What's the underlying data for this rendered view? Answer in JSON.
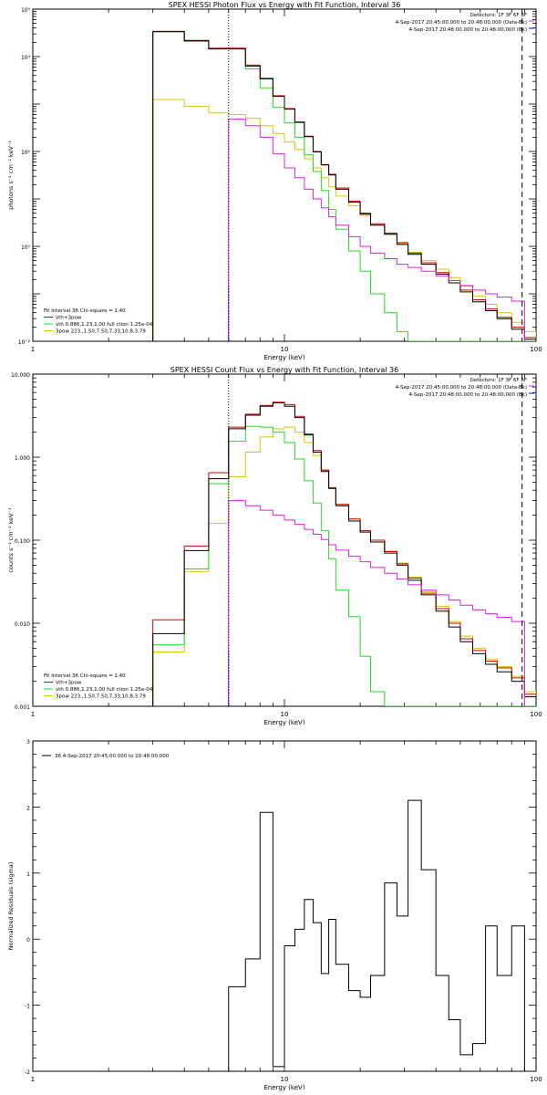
{
  "colors": {
    "total": "#000000",
    "vth_3pow": "#d40000",
    "vth": "#22dd22",
    "pow": "#d8c800",
    "spectrum": "#dd22dd",
    "background": "#0000ff"
  },
  "chart_data": [
    {
      "type": "line",
      "title": "SPEX HESSI Photon Flux vs Energy with Fit Function, Interval 36",
      "xlabel": "Energy (keV)",
      "ylabel": "photons s⁻¹ cm⁻² keV⁻¹",
      "xscale": "log",
      "yscale": "log",
      "xlim": [
        1,
        100
      ],
      "ylim": [
        0.01,
        100000
      ],
      "xticks": [
        "1",
        "10",
        "100"
      ],
      "yticks": [
        "10⁻²",
        "10⁰",
        "10²",
        "10⁴",
        "10⁵"
      ],
      "yticks_lines": [
        {
          "v": 0.01,
          "label": "10⁻²"
        },
        {
          "v": 1,
          "label": "10⁰"
        },
        {
          "v": 100,
          "label": "10²"
        },
        {
          "v": 10000,
          "label": "10⁴"
        },
        {
          "v": 100000,
          "label": "10⁵"
        }
      ],
      "header_lines": [
        "Detectors: 1F 3F 6F 8F",
        "4-Sep-2017 20:45:00.000 to 20:48:00.000 (Data-Bk)",
        "4-Sep-2017 20:48:00.000 to 20:48:00.000 (Bk)"
      ],
      "legend_lines": [
        "Fit Interval 36   Chi-square = 1.40",
        "vth+3pow",
        "vth 0.886,1.23,1.00  full ction 1.25e-04",
        "3pow 223.,1.50,7.50,7.33,10.8,3.79"
      ],
      "vlines": [
        {
          "x": 6.0,
          "style": "dotted"
        },
        {
          "x": 88.0,
          "style": "dashed"
        }
      ],
      "bin_edges": [
        3,
        4,
        5,
        6,
        7,
        8,
        9,
        10,
        11,
        12,
        13,
        14,
        15,
        16,
        18,
        20,
        22,
        25,
        28,
        31,
        35,
        40,
        45,
        50,
        56,
        63,
        70,
        80,
        90,
        100
      ],
      "series": [
        {
          "name": "vth+3pow",
          "color_key": "vth_3pow",
          "values": [
            34000,
            22000,
            15000,
            15000,
            6600,
            3500,
            1500,
            800,
            420,
            210,
            100,
            53,
            33,
            17,
            9,
            5,
            3,
            1.9,
            1.2,
            0.72,
            0.45,
            0.28,
            0.19,
            0.12,
            0.075,
            0.048,
            0.032,
            0.02,
            0.012
          ]
        },
        {
          "name": "",
          "color_key": "total",
          "values": [
            33500,
            21500,
            14500,
            14500,
            6300,
            3400,
            1450,
            780,
            410,
            205,
            98,
            52,
            32,
            16,
            8.5,
            4.8,
            2.8,
            1.8,
            1.1,
            0.68,
            0.42,
            0.26,
            0.17,
            0.11,
            0.068,
            0.044,
            0.03,
            0.018,
            0.011
          ]
        },
        {
          "name": "vth 0.886,1.23,1.00  full ction 1.25e-04",
          "color_key": "vth",
          "values": [
            34000,
            21000,
            15000,
            15000,
            5500,
            2200,
            850,
            400,
            200,
            85,
            38,
            15,
            6,
            2.3,
            0.8,
            0.3,
            0.1,
            0.04,
            0.016,
            0.01,
            0.01,
            0.01,
            0.01,
            0.01,
            0.01,
            0.01,
            0.01,
            0.01,
            0.01
          ]
        },
        {
          "name": "3pow 223.,1.50,7.50,7.33,10.8,3.79",
          "color_key": "pow",
          "values": [
            1250,
            900,
            650,
            600,
            500,
            350,
            240,
            160,
            110,
            70,
            45,
            28,
            18,
            11.5,
            7.2,
            4.5,
            2.8,
            1.8,
            1.15,
            0.75,
            0.5,
            0.33,
            0.22,
            0.145,
            0.09,
            0.06,
            0.04,
            0.025,
            0.016
          ]
        }
      ],
      "spectrum": {
        "name": "4-Sep-2017 20:45:00.000 to 20:48:00.000 (Data-Bk)",
        "color_key": "spectrum",
        "edges": [
          6,
          7,
          8,
          9,
          10,
          11,
          12,
          13,
          14,
          15,
          16,
          18,
          20,
          22,
          25,
          28,
          31,
          35,
          40,
          45,
          50,
          56,
          63,
          70,
          80,
          90
        ],
        "values": [
          480,
          350,
          200,
          90,
          45,
          28,
          16,
          10,
          6.5,
          4.2,
          2.8,
          1.6,
          1.0,
          0.72,
          0.55,
          0.42,
          0.36,
          0.3,
          0.24,
          0.19,
          0.15,
          0.12,
          0.1,
          0.085,
          0.07
        ]
      }
    },
    {
      "type": "line",
      "title": "SPEX HESSI Count Flux vs Energy with Fit Function, Interval 36",
      "xlabel": "Energy (keV)",
      "ylabel": "counts s⁻¹ cm⁻² keV⁻¹",
      "xscale": "log",
      "yscale": "log",
      "xlim": [
        1,
        100
      ],
      "ylim": [
        0.001,
        10
      ],
      "xticks": [
        "1",
        "10",
        "100"
      ],
      "yticks_lines": [
        {
          "v": 0.001,
          "label": "0.001"
        },
        {
          "v": 0.01,
          "label": "0.010"
        },
        {
          "v": 0.1,
          "label": "0.100"
        },
        {
          "v": 1,
          "label": "1.000"
        },
        {
          "v": 10,
          "label": "10.000"
        }
      ],
      "header_lines": [
        "Detectors: 1F 3F 6F 8F",
        "4-Sep-2017 20:45:00.000 to 20:48:00.000 (Data-Bk)",
        "4-Sep-2017 20:48:00.000 to 20:48:00.000 (Bk)"
      ],
      "legend_lines": [
        "Fit Interval 36   Chi-square = 1.40",
        "vth+3pow",
        "vth 0.886,1.23,1.00  full ction 1.25e-04",
        "3pow 223.,1.50,7.50,7.33,10.8,3.79"
      ],
      "vlines": [
        {
          "x": 6.0,
          "style": "dotted"
        },
        {
          "x": 88.0,
          "style": "dashed"
        }
      ],
      "bin_edges": [
        3,
        4,
        5,
        6,
        7,
        8,
        9,
        10,
        11,
        12,
        13,
        14,
        15,
        16,
        18,
        20,
        22,
        25,
        28,
        31,
        35,
        40,
        45,
        50,
        56,
        63,
        70,
        80,
        90,
        100
      ],
      "series": [
        {
          "name": "vth+3pow",
          "color_key": "vth_3pow",
          "values": [
            0.011,
            0.085,
            0.65,
            2.3,
            3.3,
            4.2,
            4.6,
            4.3,
            3.1,
            1.9,
            1.2,
            0.7,
            0.43,
            0.27,
            0.18,
            0.13,
            0.1,
            0.073,
            0.052,
            0.035,
            0.023,
            0.015,
            0.01,
            0.0065,
            0.0047,
            0.0035,
            0.0029,
            0.0022,
            0.0014
          ]
        },
        {
          "name": "",
          "color_key": "total",
          "values": [
            0.0075,
            0.075,
            0.55,
            2.2,
            3.2,
            4.1,
            4.5,
            4.1,
            3.0,
            1.85,
            1.15,
            0.68,
            0.42,
            0.26,
            0.17,
            0.125,
            0.095,
            0.07,
            0.05,
            0.033,
            0.022,
            0.014,
            0.009,
            0.006,
            0.0043,
            0.0032,
            0.0026,
            0.002,
            0.0013
          ]
        },
        {
          "name": "vth 0.886,1.23,1.00  full ction 1.25e-04",
          "color_key": "vth",
          "values": [
            0.0055,
            0.045,
            0.48,
            1.55,
            2.35,
            2.3,
            2.0,
            1.5,
            0.95,
            0.52,
            0.28,
            0.13,
            0.06,
            0.025,
            0.012,
            0.004,
            0.0015,
            0.001,
            0.001,
            0.001,
            0.001,
            0.001,
            0.001,
            0.001,
            0.001,
            0.001,
            0.001,
            0.001,
            0.001
          ]
        },
        {
          "name": "3pow 223.,1.50,7.50,7.33,10.8,3.79",
          "color_key": "pow",
          "values": [
            0.0045,
            0.042,
            0.16,
            0.58,
            1.15,
            1.75,
            2.2,
            2.3,
            2.0,
            1.5,
            1.05,
            0.66,
            0.42,
            0.27,
            0.18,
            0.13,
            0.1,
            0.074,
            0.053,
            0.036,
            0.024,
            0.016,
            0.0105,
            0.007,
            0.005,
            0.0037,
            0.003,
            0.0023,
            0.0015
          ]
        }
      ],
      "spectrum": {
        "name": "4-Sep-2017 20:45:00.000 to 20:48:00.000 (Data-Bk)",
        "color_key": "spectrum",
        "edges": [
          6,
          7,
          8,
          9,
          10,
          11,
          12,
          13,
          14,
          15,
          16,
          18,
          20,
          22,
          25,
          28,
          31,
          35,
          40,
          45,
          50,
          56,
          63,
          70,
          80,
          90
        ],
        "values": [
          0.3,
          0.26,
          0.23,
          0.2,
          0.175,
          0.155,
          0.135,
          0.118,
          0.102,
          0.088,
          0.076,
          0.064,
          0.055,
          0.047,
          0.04,
          0.034,
          0.029,
          0.025,
          0.022,
          0.019,
          0.0165,
          0.0145,
          0.013,
          0.0118,
          0.0105
        ]
      }
    },
    {
      "type": "line",
      "title": "",
      "xlabel": "Energy (keV)",
      "ylabel": "Normalized Residuals (sigma)",
      "xscale": "log",
      "yscale": "linear",
      "xlim": [
        1,
        100
      ],
      "ylim": [
        -2,
        3
      ],
      "xticks": [
        "1",
        "10",
        "100"
      ],
      "yticks_lines": [
        {
          "v": -2,
          "label": "-2"
        },
        {
          "v": -1,
          "label": "-1"
        },
        {
          "v": 0,
          "label": "0"
        },
        {
          "v": 1,
          "label": "1"
        },
        {
          "v": 2,
          "label": "2"
        },
        {
          "v": 3,
          "label": "3"
        }
      ],
      "legend_lines": [
        "36  4-Sep-2017 20:45:00.000 to 20:48:00.000"
      ],
      "bin_edges": [
        6,
        7,
        8,
        9,
        10,
        11,
        12,
        13,
        14,
        15,
        16,
        18,
        20,
        22,
        25,
        28,
        31,
        35,
        40,
        45,
        50,
        56,
        63,
        70,
        80,
        90
      ],
      "series": [
        {
          "name": "36  4-Sep-2017 20:45:00.000 to 20:48:00.000",
          "color_key": "total",
          "values": [
            -0.72,
            -0.3,
            1.92,
            -1.93,
            -0.1,
            0.15,
            0.6,
            0.25,
            -0.52,
            0.3,
            -0.38,
            -0.78,
            -0.88,
            -0.55,
            0.85,
            0.35,
            2.1,
            1.05,
            -0.55,
            -1.22,
            -1.75,
            -1.58,
            0.2,
            -0.55,
            0.2
          ]
        }
      ]
    }
  ]
}
